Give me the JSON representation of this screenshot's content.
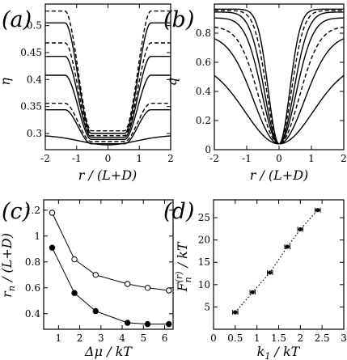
{
  "chart_data": [
    {
      "id": "a",
      "panel_label": "(a)",
      "type": "line",
      "xlabel": "r / (L+D)",
      "ylabel": "η",
      "xlim": [
        -2,
        2
      ],
      "ylim": [
        0.27,
        0.54
      ],
      "xticks": [
        -2,
        -1,
        0,
        1,
        2
      ],
      "yticks": [
        0.3,
        0.35,
        0.4,
        0.45,
        0.5
      ],
      "ytick_labels": [
        "0.3",
        "0.35",
        "0.4",
        "0.45",
        "0.5"
      ],
      "profile": {
        "shape": "smoothstep",
        "half_width": 0.95,
        "transition": 0.42
      },
      "series": [
        {
          "style": "dashed",
          "center": 0.305,
          "bulk": 0.527
        },
        {
          "style": "solid",
          "center": 0.3,
          "bulk": 0.505
        },
        {
          "style": "dashed",
          "center": 0.296,
          "bulk": 0.468
        },
        {
          "style": "solid",
          "center": 0.293,
          "bulk": 0.443
        },
        {
          "style": "solid",
          "center": 0.289,
          "bulk": 0.408
        },
        {
          "style": "dashed",
          "center": 0.285,
          "bulk": 0.356
        },
        {
          "style": "solid",
          "center": 0.281,
          "bulk": 0.344
        },
        {
          "style": "solid",
          "center": 0.279,
          "bulk": 0.297,
          "broad": true
        }
      ]
    },
    {
      "id": "b",
      "panel_label": "(b)",
      "type": "line",
      "xlabel": "r / (L+D)",
      "ylabel": "q",
      "xlim": [
        -2,
        2
      ],
      "ylim": [
        0,
        1
      ],
      "xticks": [
        -2,
        -1,
        0,
        1,
        2
      ],
      "yticks": [
        0,
        0.2,
        0.4,
        0.6,
        0.8
      ],
      "ytick_labels": [
        "0",
        "0.2",
        "0.4",
        "0.6",
        "0.8"
      ],
      "series": [
        {
          "style": "solid",
          "center": 0.04,
          "bulk": 0.965,
          "width": 0.33
        },
        {
          "style": "dashed",
          "center": 0.04,
          "bulk": 0.955,
          "width": 0.38
        },
        {
          "style": "solid",
          "center": 0.04,
          "bulk": 0.945,
          "width": 0.45
        },
        {
          "style": "solid",
          "center": 0.04,
          "bulk": 0.905,
          "width": 0.52
        },
        {
          "style": "dashed",
          "center": 0.04,
          "bulk": 0.845,
          "width": 0.62
        },
        {
          "style": "solid",
          "center": 0.04,
          "bulk": 0.79,
          "width": 0.78
        },
        {
          "style": "solid",
          "center": 0.04,
          "bulk": 0.6,
          "width": 1.05,
          "broad": true
        }
      ]
    },
    {
      "id": "c",
      "panel_label": "(c)",
      "type": "line",
      "xlabel": "Δμ / kT",
      "ylabel": "r_n / (L+D)",
      "xlim": [
        0.3,
        6.4
      ],
      "ylim": [
        0.28,
        1.28
      ],
      "xticks": [
        1,
        2,
        3,
        4,
        5,
        6
      ],
      "yticks": [
        0.4,
        0.6,
        0.8,
        1.0,
        1.2
      ],
      "ytick_labels": [
        "0.4",
        "0.6",
        "0.8",
        "1",
        "1.2"
      ],
      "series": [
        {
          "marker": "open-circle",
          "x": [
            0.7,
            1.75,
            2.75,
            4.25,
            5.2,
            6.2
          ],
          "y": [
            1.18,
            0.82,
            0.7,
            0.63,
            0.6,
            0.58
          ]
        },
        {
          "marker": "filled-circle",
          "x": [
            0.7,
            1.75,
            2.75,
            4.25,
            5.2,
            6.2
          ],
          "y": [
            0.91,
            0.56,
            0.42,
            0.33,
            0.32,
            0.32
          ]
        }
      ]
    },
    {
      "id": "d",
      "panel_label": "(d)",
      "type": "scatter",
      "xlabel": "k_1 / kT",
      "ylabel": "F_n^(r) / kT",
      "xlim": [
        0,
        3
      ],
      "ylim": [
        0,
        29
      ],
      "xticks": [
        0,
        0.5,
        1,
        1.5,
        2,
        2.5,
        3
      ],
      "xtick_labels": [
        "0",
        "0.5",
        "1",
        "1.5",
        "2",
        "2.5",
        "3"
      ],
      "yticks": [
        5,
        10,
        15,
        20,
        25
      ],
      "ytick_labels": [
        "5",
        "10",
        "15",
        "20",
        "25"
      ],
      "fit": "dotted line",
      "points": {
        "x": [
          0.5,
          0.9,
          1.3,
          1.7,
          2.0,
          2.4
        ],
        "y": [
          3.8,
          8.3,
          12.7,
          18.5,
          22.4,
          26.7
        ],
        "xerr": [
          0.06,
          0.06,
          0.06,
          0.06,
          0.06,
          0.06
        ]
      }
    }
  ]
}
